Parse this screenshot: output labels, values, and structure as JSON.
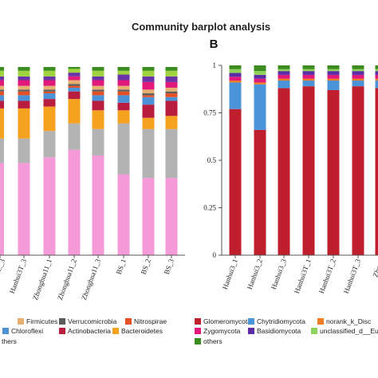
{
  "chart_data": {
    "title": "Community barplot analysis",
    "panels": [
      {
        "type": "bar",
        "stacked": true,
        "categories": [
          "Hanhui3T_3",
          "Zhonghua11_1",
          "Zhonghua11_2",
          "Zhonghua11_3",
          "BS_1",
          "BS_2",
          "BS_3"
        ],
        "visible_tick_fragments": [
          "..._3"
        ],
        "series": [
          {
            "name": "",
            "color": "#f49ad8",
            "values": [
              0.49,
              0.52,
              0.56,
              0.53,
              0.43,
              0.41,
              0.41
            ]
          },
          {
            "name": "",
            "color": "#b3b3b3",
            "values": [
              0.13,
              0.14,
              0.14,
              0.14,
              0.27,
              0.26,
              0.26
            ]
          },
          {
            "name": "Bacteroidetes",
            "color": "#f5a220",
            "values": [
              0.16,
              0.13,
              0.13,
              0.1,
              0.07,
              0.06,
              0.07
            ]
          },
          {
            "name": "Actinobacteria",
            "color": "#b81c3e",
            "values": [
              0.04,
              0.04,
              0.04,
              0.05,
              0.04,
              0.07,
              0.08
            ]
          },
          {
            "name": "Chloroflexi",
            "color": "#4d92d6",
            "values": [
              0.03,
              0.03,
              0.02,
              0.03,
              0.04,
              0.04,
              0.02
            ]
          },
          {
            "name": "Nitrospirae",
            "color": "#e55025",
            "values": [
              0.02,
              0.01,
              0.01,
              0.02,
              0.02,
              0.01,
              0.02
            ]
          },
          {
            "name": "Verrucomicrobia",
            "color": "#5c5c5c",
            "values": [
              0.01,
              0.01,
              0.01,
              0.01,
              0.01,
              0.01,
              0.01
            ]
          },
          {
            "name": "Firmicutes",
            "color": "#e8b070",
            "values": [
              0.02,
              0.02,
              0.02,
              0.02,
              0.02,
              0.02,
              0.02
            ]
          },
          {
            "name": "",
            "color": "#e0197b",
            "values": [
              0.03,
              0.03,
              0.02,
              0.03,
              0.03,
              0.04,
              0.03
            ]
          },
          {
            "name": "",
            "color": "#6a33a6",
            "values": [
              0.02,
              0.02,
              0.02,
              0.02,
              0.03,
              0.03,
              0.03
            ]
          },
          {
            "name": "",
            "color": "#9fd43f",
            "values": [
              0.03,
              0.03,
              0.02,
              0.03,
              0.02,
              0.03,
              0.03
            ]
          },
          {
            "name": "others",
            "color": "#3d8c1f",
            "values": [
              0.02,
              0.02,
              0.01,
              0.02,
              0.02,
              0.02,
              0.02
            ]
          }
        ],
        "legend": [
          {
            "label": "Firmicutes",
            "color": "#e8b070"
          },
          {
            "label": "Verrucomicrobia",
            "color": "#5c5c5c"
          },
          {
            "label": "Nitrospirae",
            "color": "#e55025"
          },
          {
            "label": "Chloroflexi",
            "color": "#4d92d6"
          },
          {
            "label": "Actinobacteria",
            "color": "#b81c3e"
          },
          {
            "label": "Bacteroidetes",
            "color": "#f5a220"
          },
          {
            "label": "thers",
            "color": "#3d8c1f"
          }
        ]
      },
      {
        "type": "bar",
        "stacked": true,
        "label": "B",
        "categories": [
          "Hanhui3_1",
          "Hanhui3_2",
          "Hanhui3_3",
          "Hanhui3T_1",
          "Hanhui3T_2",
          "Hanhui3T_3",
          "Zhong"
        ],
        "ylim": [
          0,
          1
        ],
        "yticks": [
          "0",
          "0.25",
          "0.5",
          "0.75",
          "1"
        ],
        "series": [
          {
            "name": "Glomeromycota",
            "color": "#bf1e2d",
            "values": [
              0.77,
              0.66,
              0.88,
              0.89,
              0.87,
              0.89,
              0.88
            ]
          },
          {
            "name": "Chytridiomycota",
            "color": "#4c94d9",
            "values": [
              0.14,
              0.24,
              0.04,
              0.03,
              0.05,
              0.03,
              0.04
            ]
          },
          {
            "name": "norank_k_Disc",
            "color": "#ef7c22",
            "values": [
              0.01,
              0.01,
              0.01,
              0.01,
              0.01,
              0.01,
              0.01
            ]
          },
          {
            "name": "Zygomycota",
            "color": "#e0197b",
            "values": [
              0.02,
              0.02,
              0.02,
              0.02,
              0.02,
              0.02,
              0.02
            ]
          },
          {
            "name": "Basidiomycota",
            "color": "#5b2ca6",
            "values": [
              0.02,
              0.02,
              0.02,
              0.02,
              0.02,
              0.02,
              0.02
            ]
          },
          {
            "name": "unclassified_d__Euk",
            "color": "#8fd35b",
            "values": [
              0.02,
              0.02,
              0.01,
              0.01,
              0.01,
              0.01,
              0.01
            ]
          },
          {
            "name": "others",
            "color": "#3d8c1f",
            "values": [
              0.02,
              0.03,
              0.02,
              0.02,
              0.02,
              0.02,
              0.02
            ]
          }
        ],
        "legend": [
          {
            "label": "Glomeromycota",
            "color": "#bf1e2d"
          },
          {
            "label": "Chytridiomycota",
            "color": "#4c94d9"
          },
          {
            "label": "norank_k_Disc",
            "color": "#ef7c22"
          },
          {
            "label": "Zygomycota",
            "color": "#e0197b"
          },
          {
            "label": "Basidiomycota",
            "color": "#5b2ca6"
          },
          {
            "label": "unclassified_d__Euk",
            "color": "#8fd35b"
          },
          {
            "label": "others",
            "color": "#3d8c1f"
          }
        ]
      }
    ]
  }
}
